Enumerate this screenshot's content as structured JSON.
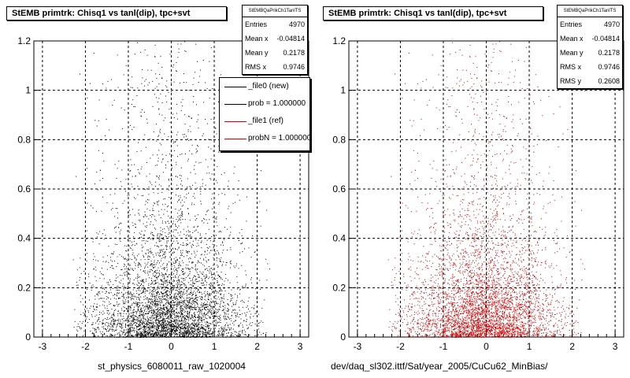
{
  "colors": {
    "new": "#000000",
    "ref": "#cc0000",
    "grid": "#000000"
  },
  "panels": [
    {
      "title": "StEMB primtrk: Chisq1 vs tanl(dip), tpc+svt",
      "file_label": "st_physics_6080011_raw_1020004",
      "point_color": "#000000",
      "stats": {
        "name": "StEMBQaPrikCh1TanlTS",
        "rows": [
          {
            "label": "Entries",
            "value": "4970"
          },
          {
            "label": "Mean x",
            "value": "-0.04814"
          },
          {
            "label": "Mean y",
            "value": "0.2178"
          },
          {
            "label": "RMS x",
            "value": "0.9746"
          }
        ]
      },
      "legend": [
        {
          "text": "_file0 (new)",
          "color": "#000000"
        },
        {
          "text": "prob = 1.000000",
          "color": "#000000"
        },
        {
          "text": "_file1 (ref)",
          "color": "#cc0000"
        },
        {
          "text": "probN = 1.000000",
          "color": "#cc0000"
        }
      ]
    },
    {
      "title": "StEMB primtrk: Chisq1 vs tanl(dip), tpc+svt",
      "file_label": "dev/daq_sl302.ittf/Sat/year_2005/CuCu62_MinBias/",
      "point_color": "#cc0000",
      "stats": {
        "name": "StEMBQaPrikCh1TanlTS",
        "rows": [
          {
            "label": "Entries",
            "value": "4970"
          },
          {
            "label": "Mean x",
            "value": "-0.04814"
          },
          {
            "label": "Mean y",
            "value": "0.2178"
          },
          {
            "label": "RMS x",
            "value": "0.9746"
          },
          {
            "label": "RMS y",
            "value": "0.2608"
          }
        ]
      }
    }
  ],
  "chart_data": [
    {
      "type": "scatter",
      "title": "StEMB primtrk: Chisq1 vs tanl(dip), tpc+svt",
      "xlabel": "st_physics_6080011_raw_1020004",
      "ylabel": "",
      "xlim": [
        -3.2,
        3.2
      ],
      "ylim": [
        0,
        1.2
      ],
      "xticks": [
        "-3",
        "-2",
        "-1",
        "0",
        "1",
        "2",
        "3"
      ],
      "yticks": [
        "0",
        "0.2",
        "0.4",
        "0.6",
        "0.8",
        "1",
        "1.2"
      ],
      "grid": true,
      "entries": 4970,
      "mean_x": -0.04814,
      "mean_y": 0.2178,
      "rms_x": 0.9746,
      "x_range_of_points": [
        -2.3,
        2.3
      ],
      "series": [
        {
          "name": "_file0 (new)",
          "color": "#000000"
        }
      ]
    },
    {
      "type": "scatter",
      "title": "StEMB primtrk: Chisq1 vs tanl(dip), tpc+svt",
      "xlabel": "dev/daq_sl302.ittf/Sat/year_2005/CuCu62_MinBias/",
      "ylabel": "",
      "xlim": [
        -3.2,
        3.2
      ],
      "ylim": [
        0,
        1.2
      ],
      "xticks": [
        "-3",
        "-2",
        "-1",
        "0",
        "1",
        "2",
        "3"
      ],
      "yticks": [
        "0",
        "0.2",
        "0.4",
        "0.6",
        "0.8",
        "1",
        "1.2"
      ],
      "grid": true,
      "entries": 4970,
      "mean_x": -0.04814,
      "mean_y": 0.2178,
      "rms_x": 0.9746,
      "rms_y": 0.2608,
      "x_range_of_points": [
        -2.3,
        2.3
      ],
      "series": [
        {
          "name": "_file1 (ref)",
          "color": "#cc0000"
        }
      ]
    }
  ]
}
